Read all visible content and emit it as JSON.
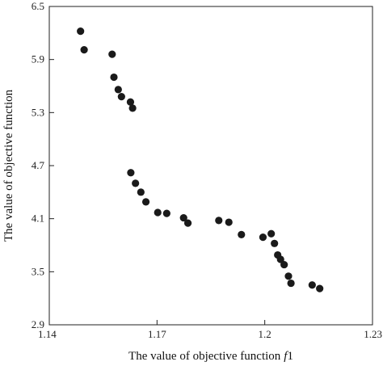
{
  "chart_data": {
    "type": "scatter",
    "title": "",
    "xlabel": "The value of objective function",
    "xlabel_symbol": "f",
    "xlabel_subscript": "1",
    "ylabel": "The value of objective function",
    "xlim": [
      1.14,
      1.23
    ],
    "ylim": [
      2.9,
      6.5
    ],
    "xticks": [
      1.14,
      1.17,
      1.2,
      1.23
    ],
    "xtick_labels": [
      "1.14",
      "1.17",
      "1.2",
      "1.23"
    ],
    "yticks": [
      2.9,
      3.5,
      4.1,
      4.7,
      5.3,
      5.9,
      6.5
    ],
    "ytick_labels": [
      "2.9",
      "3.5",
      "4.1",
      "4.7",
      "5.3",
      "5.9",
      "6.5"
    ],
    "grid": false,
    "legend": "none",
    "marker_color": "#1a1a1a",
    "points": [
      {
        "x": 1.1487,
        "y": 6.22
      },
      {
        "x": 1.1497,
        "y": 6.01
      },
      {
        "x": 1.1575,
        "y": 5.96
      },
      {
        "x": 1.158,
        "y": 5.7
      },
      {
        "x": 1.1592,
        "y": 5.56
      },
      {
        "x": 1.1601,
        "y": 5.48
      },
      {
        "x": 1.1626,
        "y": 5.42
      },
      {
        "x": 1.1632,
        "y": 5.35
      },
      {
        "x": 1.1627,
        "y": 4.62
      },
      {
        "x": 1.164,
        "y": 4.5
      },
      {
        "x": 1.1655,
        "y": 4.4
      },
      {
        "x": 1.1669,
        "y": 4.29
      },
      {
        "x": 1.1702,
        "y": 4.17
      },
      {
        "x": 1.1727,
        "y": 4.16
      },
      {
        "x": 1.1774,
        "y": 4.11
      },
      {
        "x": 1.1786,
        "y": 4.05
      },
      {
        "x": 1.1872,
        "y": 4.08
      },
      {
        "x": 1.19,
        "y": 4.06
      },
      {
        "x": 1.1935,
        "y": 3.92
      },
      {
        "x": 1.1995,
        "y": 3.89
      },
      {
        "x": 1.2018,
        "y": 3.93
      },
      {
        "x": 1.2027,
        "y": 3.82
      },
      {
        "x": 1.2036,
        "y": 3.69
      },
      {
        "x": 1.2044,
        "y": 3.64
      },
      {
        "x": 1.2054,
        "y": 3.58
      },
      {
        "x": 1.2066,
        "y": 3.45
      },
      {
        "x": 1.2073,
        "y": 3.37
      },
      {
        "x": 1.2132,
        "y": 3.35
      },
      {
        "x": 1.2153,
        "y": 3.31
      }
    ]
  }
}
